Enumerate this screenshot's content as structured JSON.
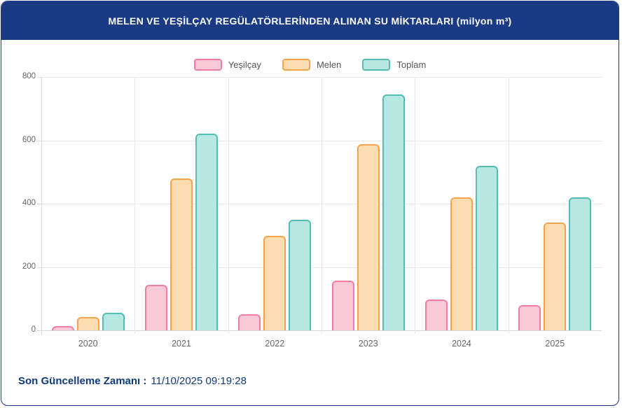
{
  "header": {
    "title": "MELEN VE YEŞİLÇAY REGÜLATÖRLERİNDEN ALINAN SU MİKTARLARI (milyon m³)"
  },
  "footer": {
    "label": "Son Güncelleme Zamanı :",
    "value": "11/10/2025 09:19:28"
  },
  "colors": {
    "header_bg": "#1a3a83",
    "footer_text": "#113a7c",
    "gridline": "#e8e8e8",
    "axis_line": "#d8d8d8",
    "tick_text": "#666666",
    "legend_text": "#555555"
  },
  "chart_data": {
    "type": "bar",
    "title": "MELEN VE YEŞİLÇAY REGÜLATÖRLERİNDEN ALINAN SU MİKTARLARI (milyon m³)",
    "categories": [
      "2020",
      "2021",
      "2022",
      "2023",
      "2024",
      "2025"
    ],
    "series": [
      {
        "name": "Yeşilçay",
        "fill": "#f9c9d8",
        "border": "#f07ca2",
        "values": [
          14,
          143,
          51,
          157,
          98,
          80
        ]
      },
      {
        "name": "Melen",
        "fill": "#fddcb2",
        "border": "#f5a44d",
        "values": [
          41,
          479,
          298,
          587,
          421,
          340
        ]
      },
      {
        "name": "Toplam",
        "fill": "#b7e7e2",
        "border": "#53bdb4",
        "values": [
          55,
          622,
          350,
          745,
          520,
          420
        ]
      }
    ],
    "xlabel": "",
    "ylabel": "",
    "ylim": [
      0,
      800
    ],
    "yticks": [
      0,
      200,
      400,
      600,
      800
    ],
    "grid": true,
    "legend_position": "top-center"
  }
}
